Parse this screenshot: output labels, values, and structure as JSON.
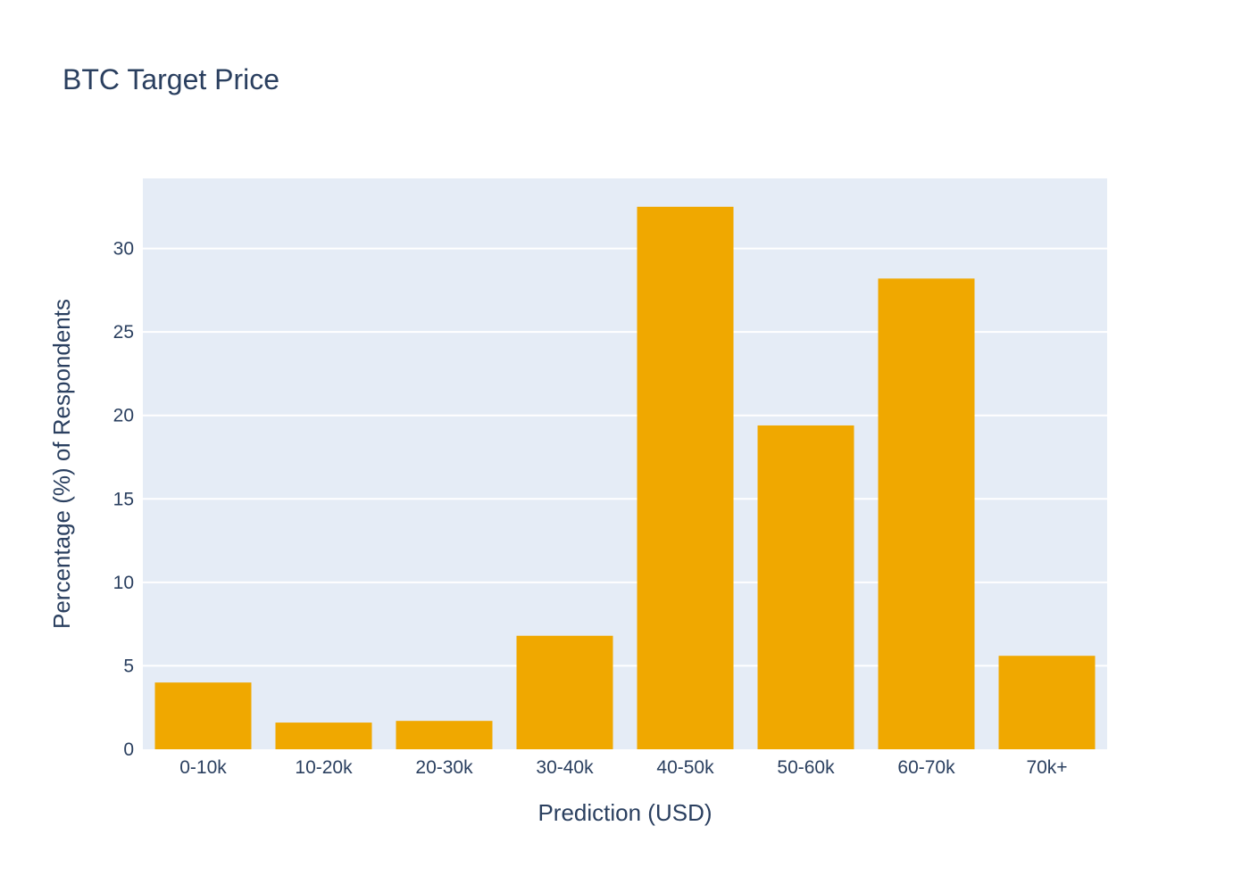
{
  "chart_data": {
    "type": "bar",
    "title": "BTC Target Price",
    "xlabel": "Prediction (USD)",
    "ylabel": "Percentage (%) of Respondents",
    "categories": [
      "0-10k",
      "10-20k",
      "20-30k",
      "30-40k",
      "40-50k",
      "50-60k",
      "60-70k",
      "70k+"
    ],
    "values": [
      4.0,
      1.6,
      1.7,
      6.8,
      32.5,
      19.4,
      28.2,
      5.6
    ],
    "ylim": [
      0,
      34.2
    ],
    "yticks": [
      0,
      5,
      10,
      15,
      20,
      25,
      30
    ],
    "grid": true,
    "legend": "none",
    "colors": {
      "bar": "#f0a800",
      "plot_background": "#e5ecf6",
      "grid": "#ffffff",
      "text": "#2a3f5f"
    }
  }
}
